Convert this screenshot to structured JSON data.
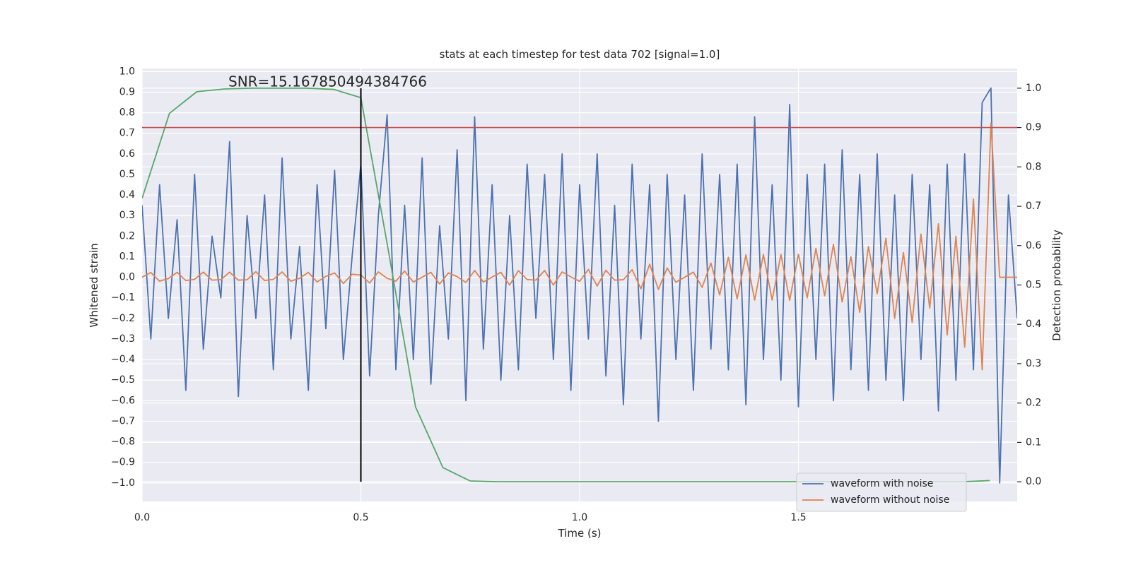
{
  "chart_data": {
    "type": "line",
    "title": "stats at each timestep for test data 702 [signal=1.0]",
    "annotation": "SNR=15.167850494384766",
    "xlabel": "Time (s)",
    "ylabel": "Whitened strain",
    "y2label": "Detection probability",
    "grid": true,
    "legend": "lower right",
    "xlim": [
      0,
      2.0
    ],
    "ylim": [
      -1.09,
      1.015
    ],
    "y2lim": [
      -0.05,
      1.05
    ],
    "xticks": [
      {
        "value": 0,
        "label": "0.0"
      },
      0.5,
      {
        "value": 1,
        "label": "1.0"
      },
      1.5
    ],
    "yticks": [
      {
        "value": -1.0,
        "label": "−1.0"
      },
      {
        "value": -0.9,
        "label": "−0.9"
      },
      {
        "value": -0.8,
        "label": "−0.8"
      },
      {
        "value": -0.7,
        "label": "−0.7"
      },
      {
        "value": -0.6,
        "label": "−0.6"
      },
      {
        "value": -0.5,
        "label": "−0.5"
      },
      {
        "value": -0.4,
        "label": "−0.4"
      },
      {
        "value": -0.3,
        "label": "−0.3"
      },
      {
        "value": -0.2,
        "label": "−0.2"
      },
      {
        "value": -0.1,
        "label": "−0.1"
      },
      {
        "value": 0,
        "label": "0.0"
      },
      0.1,
      0.2,
      0.3,
      0.4,
      0.5,
      0.6,
      0.7,
      0.8,
      0.9,
      {
        "value": 1.0,
        "label": "1.0"
      }
    ],
    "y2ticks": [
      {
        "value": 0,
        "label": "0.0"
      },
      0.1,
      0.2,
      0.3,
      0.4,
      0.5,
      0.6,
      0.7,
      0.8,
      0.9,
      {
        "value": 1.0,
        "label": "1.0"
      }
    ],
    "x": [
      0,
      0.02,
      0.04,
      0.06,
      0.08,
      0.1,
      0.12,
      0.14,
      0.16,
      0.18,
      0.2,
      0.22,
      0.24,
      0.26,
      0.28,
      0.3,
      0.32,
      0.34,
      0.36,
      0.38,
      0.4,
      0.42,
      0.44,
      0.46,
      0.48,
      0.5,
      0.52,
      0.54,
      0.56,
      0.58,
      0.6,
      0.62,
      0.64,
      0.66,
      0.68,
      0.7,
      0.72,
      0.74,
      0.76,
      0.78,
      0.8,
      0.82,
      0.84,
      0.86,
      0.88,
      0.9,
      0.92,
      0.94,
      0.96,
      0.98,
      1.0,
      1.02,
      1.04,
      1.06,
      1.08,
      1.1,
      1.12,
      1.14,
      1.16,
      1.18,
      1.2,
      1.22,
      1.24,
      1.26,
      1.28,
      1.3,
      1.32,
      1.34,
      1.36,
      1.38,
      1.4,
      1.42,
      1.44,
      1.46,
      1.48,
      1.5,
      1.52,
      1.54,
      1.56,
      1.58,
      1.6,
      1.62,
      1.64,
      1.66,
      1.68,
      1.7,
      1.72,
      1.74,
      1.76,
      1.78,
      1.8,
      1.82,
      1.84,
      1.86,
      1.88,
      1.9,
      1.92,
      1.94,
      1.96,
      1.98,
      2.0
    ],
    "series": [
      {
        "name": "waveform with noise",
        "color": "#4c72b0",
        "values": [
          0.35,
          -0.3,
          0.45,
          -0.2,
          0.28,
          -0.55,
          0.5,
          -0.35,
          0.2,
          -0.1,
          0.66,
          -0.58,
          0.3,
          -0.2,
          0.4,
          -0.45,
          0.58,
          -0.3,
          0.15,
          -0.55,
          0.45,
          -0.25,
          0.52,
          -0.4,
          0.1,
          0.55,
          -0.48,
          0.3,
          0.79,
          -0.45,
          0.35,
          -0.4,
          0.58,
          -0.52,
          0.25,
          -0.3,
          0.62,
          -0.6,
          0.78,
          -0.35,
          0.45,
          -0.5,
          0.3,
          -0.45,
          0.55,
          -0.2,
          0.5,
          -0.4,
          0.6,
          -0.55,
          0.45,
          -0.3,
          0.6,
          -0.48,
          0.35,
          -0.62,
          0.55,
          -0.3,
          0.45,
          -0.7,
          0.5,
          -0.4,
          0.4,
          -0.55,
          0.6,
          -0.35,
          0.5,
          -0.45,
          0.55,
          -0.62,
          0.78,
          -0.4,
          0.45,
          -0.5,
          0.84,
          -0.63,
          0.5,
          -0.4,
          0.55,
          -0.6,
          0.62,
          -0.45,
          0.5,
          -0.55,
          0.6,
          -0.5,
          0.4,
          -0.6,
          0.5,
          -0.4,
          0.45,
          -0.65,
          0.55,
          -0.5,
          0.6,
          -0.45,
          0.85,
          0.92,
          -1.0,
          0.4,
          -0.2
        ]
      },
      {
        "name": "waveform without noise",
        "color": "#dd8452",
        "values": [
          0,
          0.023,
          -0.019,
          -0.006,
          0.024,
          -0.016,
          -0.01,
          0.025,
          -0.014,
          -0.012,
          0.025,
          -0.014,
          -0.012,
          0.027,
          -0.016,
          -0.01,
          0.026,
          -0.019,
          -0.005,
          0.024,
          -0.023,
          0.004,
          0.021,
          -0.03,
          0.015,
          0.011,
          -0.028,
          0.026,
          -0.005,
          -0.019,
          0.03,
          -0.023,
          0,
          0.024,
          -0.033,
          0.021,
          0.003,
          -0.025,
          0.033,
          -0.023,
          0.001,
          0.024,
          -0.038,
          0.032,
          -0.011,
          -0.014,
          0.033,
          -0.038,
          0.026,
          0.002,
          -0.02,
          0.038,
          -0.043,
          0.034,
          -0.014,
          -0.012,
          0.037,
          -0.056,
          0.063,
          -0.059,
          0.045,
          -0.024,
          0,
          0.025,
          -0.049,
          0.069,
          -0.086,
          0.097,
          -0.105,
          0.109,
          -0.111,
          0.111,
          -0.111,
          0.111,
          -0.112,
          0.112,
          -0.1,
          0.14,
          -0.09,
          0.16,
          -0.12,
          0.1,
          -0.17,
          0.15,
          -0.08,
          0.19,
          -0.2,
          0.12,
          -0.22,
          0.21,
          -0.15,
          0.26,
          -0.28,
          0.2,
          -0.34,
          0.38,
          -0.45,
          0.75,
          0,
          0,
          0
        ]
      },
      {
        "color": "#55a868",
        "axis": "y2",
        "x": [
          0,
          0.0625,
          0.125,
          0.1875,
          0.25,
          0.3125,
          0.375,
          0.4375,
          0.5,
          0.5625,
          0.625,
          0.6875,
          0.75,
          0.8125,
          0.875,
          0.9375,
          1.0,
          1.0625,
          1.125,
          1.1875,
          1.25,
          1.3125,
          1.375,
          1.4375,
          1.5,
          1.5625,
          1.625,
          1.6875,
          1.75,
          1.8125,
          1.875,
          1.9375
        ],
        "values": [
          0.72,
          0.936,
          0.991,
          0.998,
          1.0,
          1.0,
          1.0,
          0.997,
          0.976,
          0.59,
          0.19,
          0.036,
          0.002,
          0,
          0,
          0,
          0,
          0,
          0,
          0,
          0,
          0,
          0,
          0,
          0,
          0,
          0,
          0,
          0,
          0,
          0,
          0.003
        ]
      }
    ],
    "hlines": [
      {
        "y": 0.9,
        "axis": "y2",
        "color": "#c44e52"
      }
    ],
    "vlines": [
      {
        "x": 0.5,
        "ymin": 0,
        "ymax": 1.0,
        "axis": "y2",
        "color": "#000000"
      }
    ]
  }
}
